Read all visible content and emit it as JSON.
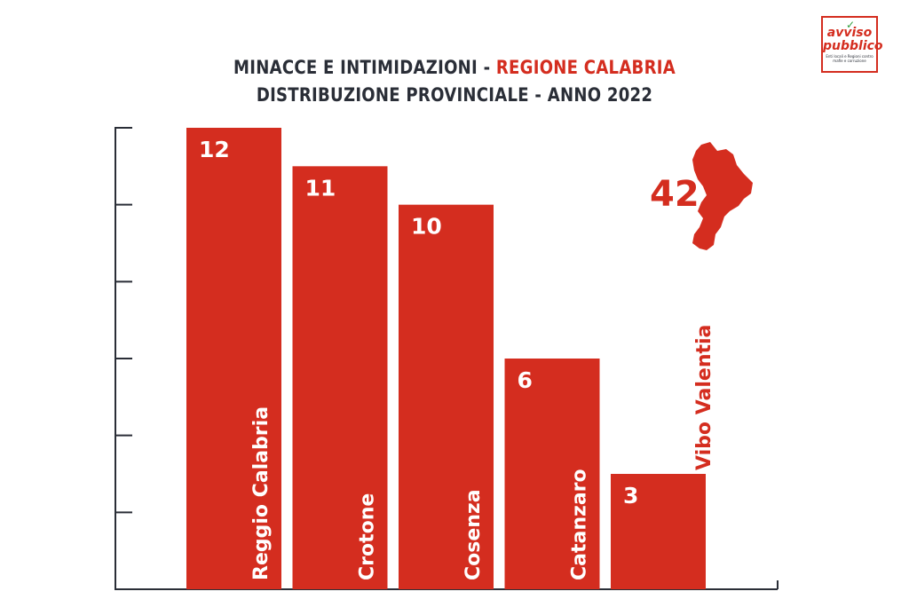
{
  "logo": {
    "line1": "avviso",
    "line2": "pubblico",
    "tagline": "Enti locali e Regioni contro mafie e corruzione"
  },
  "title": {
    "part1": "MINACCE E INTIMIDAZIONI - ",
    "part2": "REGIONE CALABRIA",
    "line2": "DISTRIBUZIONE PROVINCIALE - ANNO 2022"
  },
  "total": {
    "value": "42"
  },
  "colors": {
    "bar": "#d42d1f",
    "axis": "#2a2e37",
    "label_inside": "#ffffff",
    "label_outside": "#d42d1f"
  },
  "chart_data": {
    "type": "bar",
    "title": "MINACCE E INTIMIDAZIONI - REGIONE CALABRIA",
    "subtitle": "DISTRIBUZIONE PROVINCIALE - ANNO 2022",
    "categories": [
      "Reggio Calabria",
      "Crotone",
      "Cosenza",
      "Catanzaro",
      "Vibo Valentia"
    ],
    "values": [
      12,
      11,
      10,
      6,
      3
    ],
    "ylim": [
      0,
      12
    ],
    "grid": false,
    "legend": "none"
  }
}
